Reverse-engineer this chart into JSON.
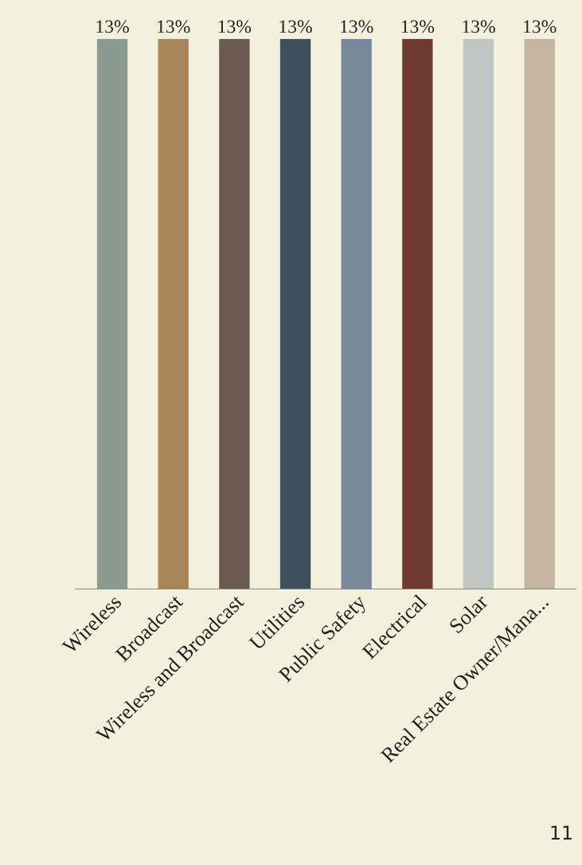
{
  "chart_data": {
    "type": "bar",
    "categories": [
      "Wireless",
      "Broadcast",
      "Wireless and Broadcast",
      "Utilities",
      "Public Safety",
      "Electrical",
      "Solar",
      "Real Estate Owner/Mana..."
    ],
    "values": [
      13,
      13,
      13,
      13,
      13,
      13,
      13,
      13
    ],
    "colors": [
      "#8a9a8e",
      "#a8865a",
      "#6b5a50",
      "#3e4e5c",
      "#7a889c",
      "#6e3a32",
      "#c0c4c2",
      "#c4b4a0"
    ],
    "value_labels": [
      "13%",
      "13%",
      "13%",
      "13%",
      "13%",
      "13%",
      "13%",
      "13%"
    ],
    "tick_labels": "x",
    "annotations": [
      "11"
    ]
  }
}
